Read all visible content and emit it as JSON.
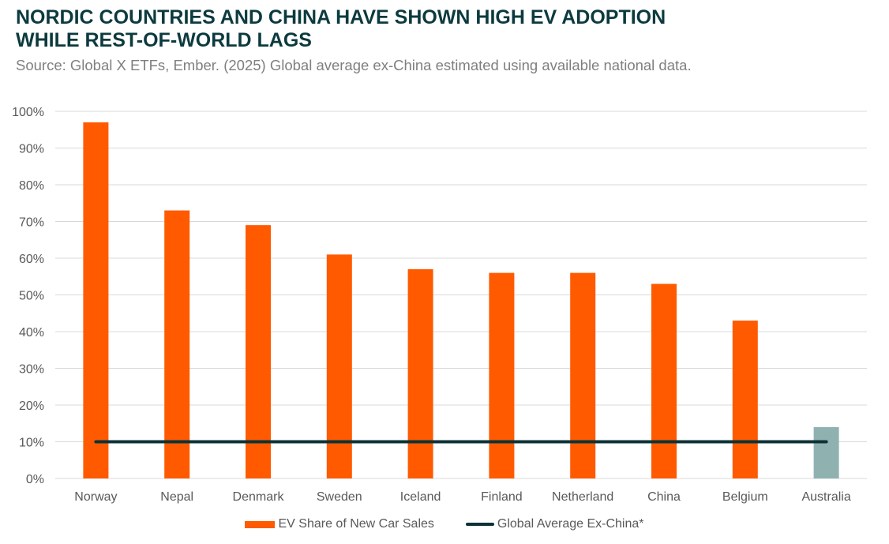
{
  "chart_data": {
    "type": "bar",
    "title": "NORDIC COUNTRIES AND CHINA HAVE SHOWN HIGH EV ADOPTION WHILE REST-OF-WORLD LAGS",
    "subtitle": "Source: Global X ETFs, Ember. (2025) Global average ex-China estimated using available national data.",
    "categories": [
      "Norway",
      "Nepal",
      "Denmark",
      "Sweden",
      "Iceland",
      "Finland",
      "Netherland",
      "China",
      "Belgium",
      "Australia"
    ],
    "series": [
      {
        "name": "EV Share of New Car Sales",
        "type": "bar",
        "values": [
          97,
          73,
          69,
          61,
          57,
          56,
          56,
          53,
          43,
          14
        ],
        "color": "#ff5a00",
        "highlight": {
          "Australia": "#8fb2b1"
        }
      },
      {
        "name": "Global Average Ex-China*",
        "type": "line",
        "values": [
          10,
          10,
          10,
          10,
          10,
          10,
          10,
          10,
          10,
          10
        ],
        "color": "#0c3236"
      }
    ],
    "ylim": [
      0,
      100
    ],
    "yticks": [
      "0%",
      "10%",
      "20%",
      "30%",
      "40%",
      "50%",
      "60%",
      "70%",
      "80%",
      "90%",
      "100%"
    ],
    "grid": true,
    "legend_position": "bottom"
  }
}
